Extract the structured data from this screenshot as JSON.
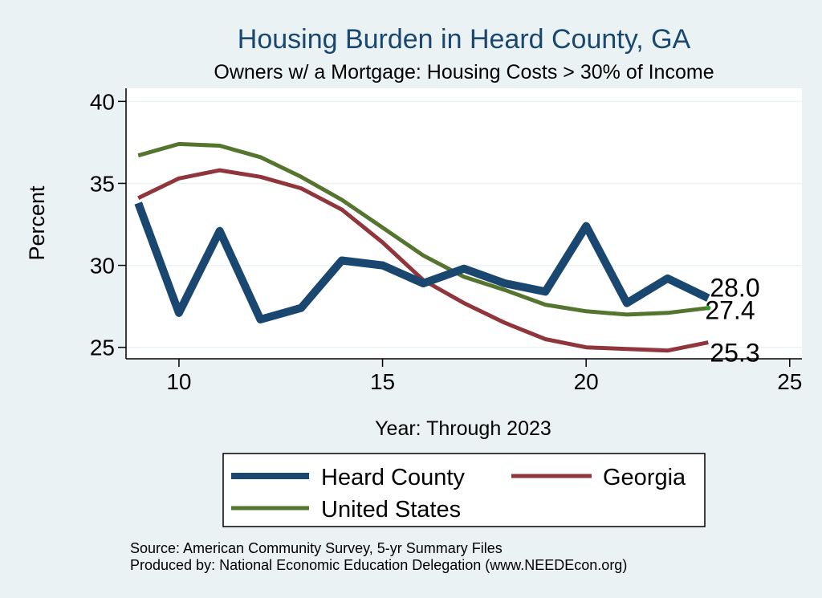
{
  "chart_data": {
    "type": "line",
    "title": "Housing Burden in Heard County, GA",
    "subtitle": "Owners w/ a Mortgage: Housing Costs > 30% of Income",
    "xlabel": "Year: Through 2023",
    "ylabel": "Percent",
    "xlim": [
      8.7,
      25.3
    ],
    "ylim": [
      24.3,
      40.8
    ],
    "xticks": [
      10,
      15,
      20,
      25
    ],
    "yticks": [
      25,
      30,
      35,
      40
    ],
    "grid": true,
    "legend_position": "bottom",
    "x": [
      9,
      10,
      11,
      12,
      13,
      14,
      15,
      16,
      17,
      18,
      19,
      20,
      21,
      22,
      23
    ],
    "series": [
      {
        "name": "Heard County",
        "color": "#1a476f",
        "values": [
          33.8,
          27.1,
          32.1,
          26.7,
          27.4,
          30.3,
          30.0,
          28.9,
          29.8,
          28.9,
          28.4,
          32.4,
          27.7,
          29.2,
          28.0
        ],
        "end_label": "28.0"
      },
      {
        "name": "Georgia",
        "color": "#90353b",
        "values": [
          34.1,
          35.3,
          35.8,
          35.4,
          34.7,
          33.4,
          31.4,
          29.1,
          27.7,
          26.5,
          25.5,
          25.0,
          24.9,
          24.8,
          25.3
        ],
        "end_label": "25.3"
      },
      {
        "name": "United States",
        "color": "#55752f",
        "values": [
          36.7,
          37.4,
          37.3,
          36.6,
          35.4,
          34.0,
          32.3,
          30.6,
          29.3,
          28.5,
          27.6,
          27.2,
          27.0,
          27.1,
          27.4
        ],
        "end_label": "27.4"
      }
    ]
  },
  "footer": {
    "source": "Source: American Community Survey, 5-yr Summary Files",
    "produced_by": "Produced by: National Economic Education Delegation (www.NEEDEcon.org)"
  }
}
